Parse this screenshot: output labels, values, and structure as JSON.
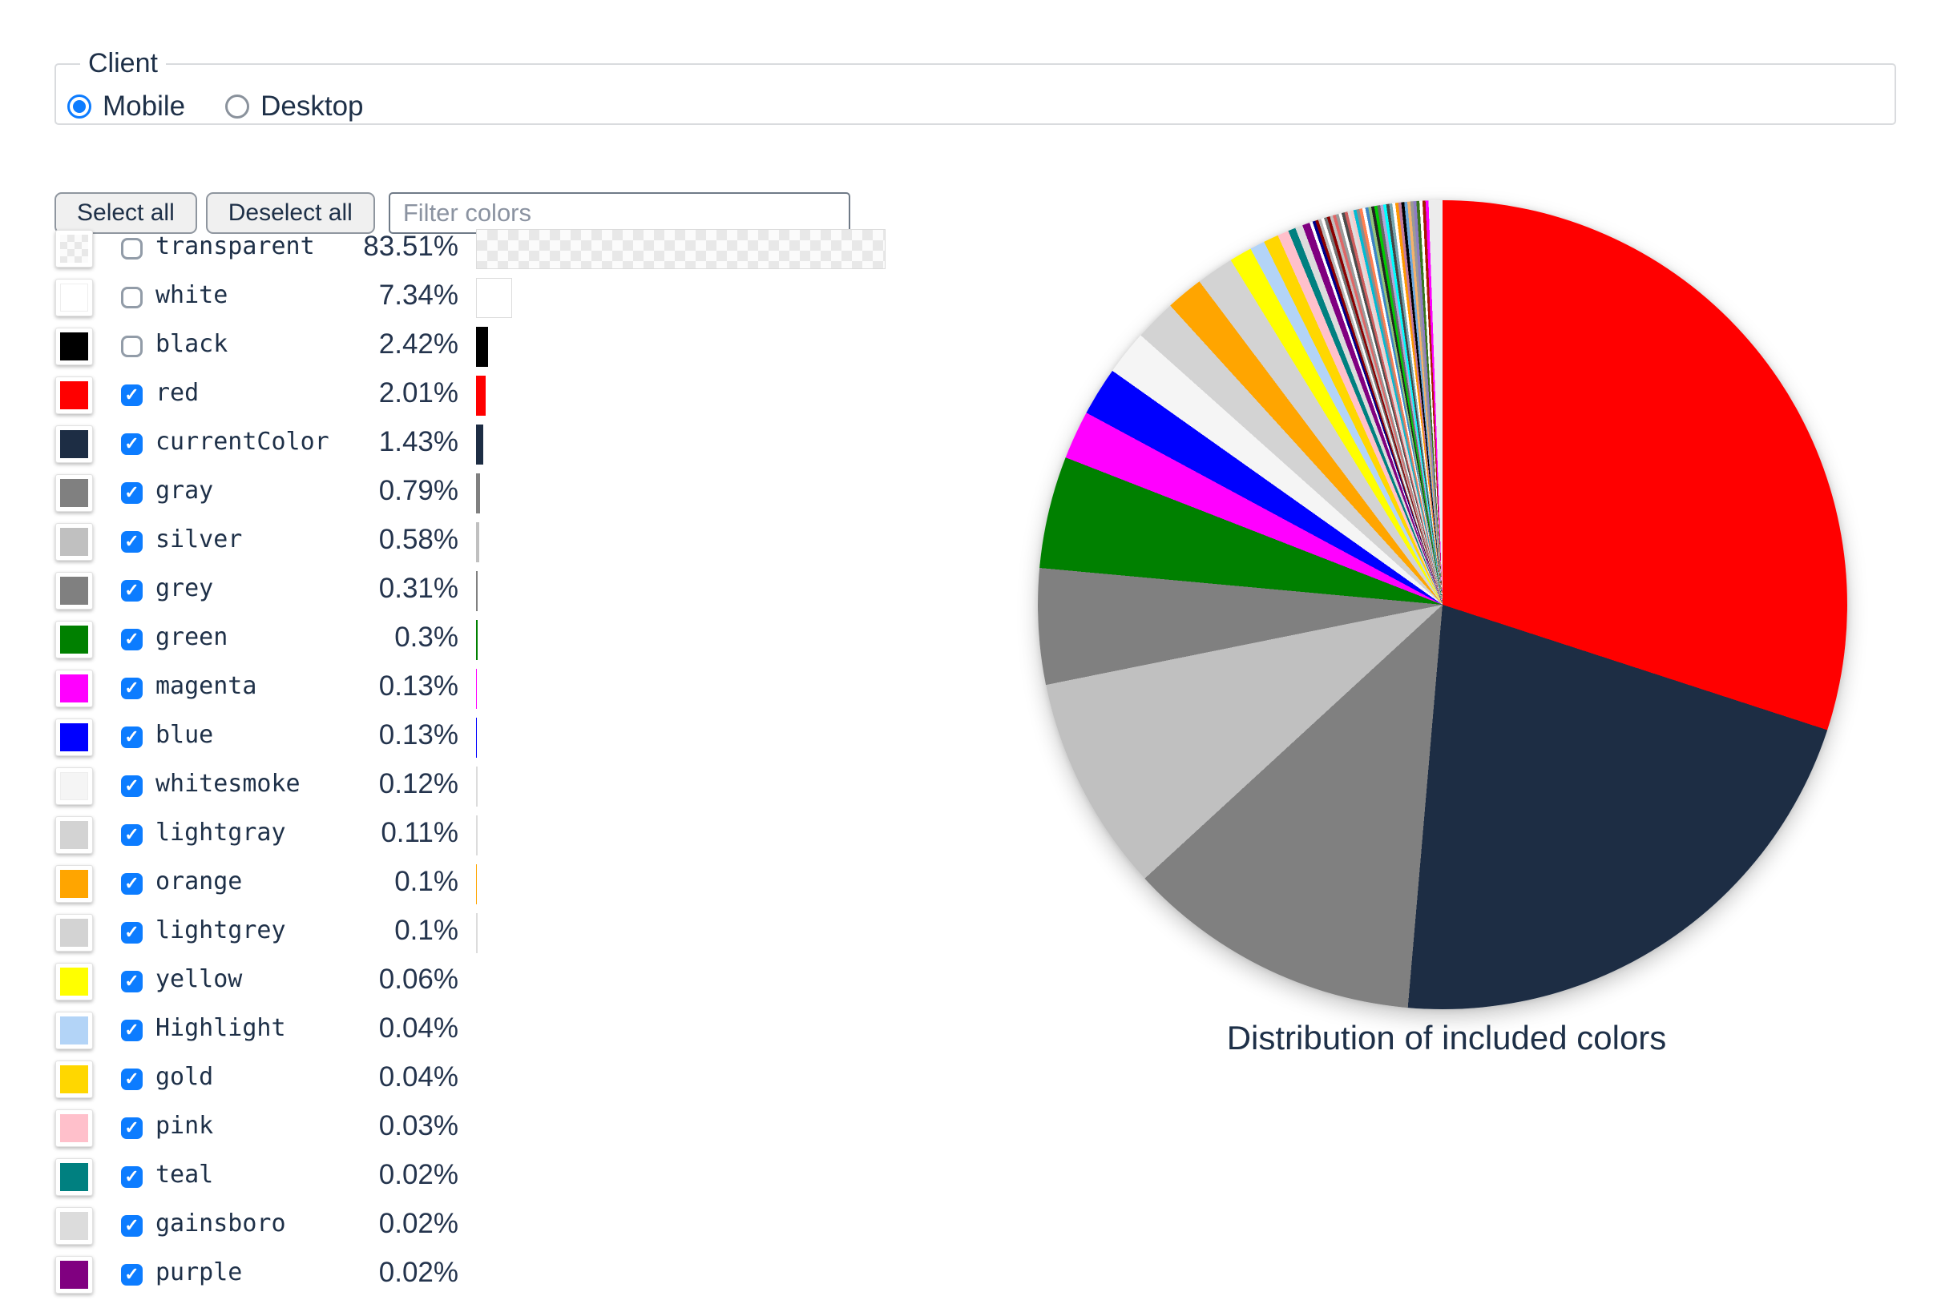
{
  "client_fieldset": {
    "legend": "Client",
    "options": [
      {
        "label": "Mobile",
        "selected": true
      },
      {
        "label": "Desktop",
        "selected": false
      }
    ]
  },
  "toolbar": {
    "select_all_label": "Select all",
    "deselect_all_label": "Deselect all",
    "filter_placeholder": "Filter colors"
  },
  "ui_colors": {
    "accent_blue": "#0c7cff",
    "text_navy": "#1e3048"
  },
  "colors": [
    {
      "name": "transparent",
      "pct": 83.51,
      "pct_label": "83.51%",
      "checked": false,
      "swatch": "checker"
    },
    {
      "name": "white",
      "pct": 7.34,
      "pct_label": "7.34%",
      "checked": false,
      "swatch": "#ffffff"
    },
    {
      "name": "black",
      "pct": 2.42,
      "pct_label": "2.42%",
      "checked": false,
      "swatch": "#000000"
    },
    {
      "name": "red",
      "pct": 2.01,
      "pct_label": "2.01%",
      "checked": true,
      "swatch": "#ff0000"
    },
    {
      "name": "currentColor",
      "pct": 1.43,
      "pct_label": "1.43%",
      "checked": true,
      "swatch": "#1d2d44"
    },
    {
      "name": "gray",
      "pct": 0.79,
      "pct_label": "0.79%",
      "checked": true,
      "swatch": "#808080"
    },
    {
      "name": "silver",
      "pct": 0.58,
      "pct_label": "0.58%",
      "checked": true,
      "swatch": "#c0c0c0"
    },
    {
      "name": "grey",
      "pct": 0.31,
      "pct_label": "0.31%",
      "checked": true,
      "swatch": "#808080"
    },
    {
      "name": "green",
      "pct": 0.3,
      "pct_label": "0.3%",
      "checked": true,
      "swatch": "#008000"
    },
    {
      "name": "magenta",
      "pct": 0.13,
      "pct_label": "0.13%",
      "checked": true,
      "swatch": "#ff00ff"
    },
    {
      "name": "blue",
      "pct": 0.13,
      "pct_label": "0.13%",
      "checked": true,
      "swatch": "#0000ff"
    },
    {
      "name": "whitesmoke",
      "pct": 0.12,
      "pct_label": "0.12%",
      "checked": true,
      "swatch": "#f5f5f5"
    },
    {
      "name": "lightgray",
      "pct": 0.11,
      "pct_label": "0.11%",
      "checked": true,
      "swatch": "#d3d3d3"
    },
    {
      "name": "orange",
      "pct": 0.1,
      "pct_label": "0.1%",
      "checked": true,
      "swatch": "#ffa500"
    },
    {
      "name": "lightgrey",
      "pct": 0.1,
      "pct_label": "0.1%",
      "checked": true,
      "swatch": "#d3d3d3"
    },
    {
      "name": "yellow",
      "pct": 0.06,
      "pct_label": "0.06%",
      "checked": true,
      "swatch": "#ffff00"
    },
    {
      "name": "Highlight",
      "pct": 0.04,
      "pct_label": "0.04%",
      "checked": true,
      "swatch": "#b3d4f7"
    },
    {
      "name": "gold",
      "pct": 0.04,
      "pct_label": "0.04%",
      "checked": true,
      "swatch": "#ffd700"
    },
    {
      "name": "pink",
      "pct": 0.03,
      "pct_label": "0.03%",
      "checked": true,
      "swatch": "#ffc0cb"
    },
    {
      "name": "teal",
      "pct": 0.02,
      "pct_label": "0.02%",
      "checked": true,
      "swatch": "#008080"
    },
    {
      "name": "gainsboro",
      "pct": 0.02,
      "pct_label": "0.02%",
      "checked": true,
      "swatch": "#dcdcdc"
    },
    {
      "name": "purple",
      "pct": 0.02,
      "pct_label": "0.02%",
      "checked": true,
      "swatch": "#800080"
    }
  ],
  "chart_data": {
    "type": "pie",
    "title": "Distribution of included colors",
    "units": "%",
    "note": "Slices are the checked colors, drawn clockwise from 12 o'clock; a long tail of tiny unlabeled color slices fills the last ~20 degrees before returning to top.",
    "slices": [
      {
        "label": "red",
        "value": 2.01,
        "color": "#ff0000"
      },
      {
        "label": "currentColor",
        "value": 1.43,
        "color": "#1d2d44"
      },
      {
        "label": "gray",
        "value": 0.79,
        "color": "#808080"
      },
      {
        "label": "silver",
        "value": 0.58,
        "color": "#c0c0c0"
      },
      {
        "label": "grey",
        "value": 0.31,
        "color": "#808080"
      },
      {
        "label": "green",
        "value": 0.3,
        "color": "#008000"
      },
      {
        "label": "magenta",
        "value": 0.13,
        "color": "#ff00ff"
      },
      {
        "label": "blue",
        "value": 0.13,
        "color": "#0000ff"
      },
      {
        "label": "whitesmoke",
        "value": 0.12,
        "color": "#f5f5f5"
      },
      {
        "label": "lightgray",
        "value": 0.11,
        "color": "#d3d3d3"
      },
      {
        "label": "orange",
        "value": 0.1,
        "color": "#ffa500"
      },
      {
        "label": "lightgrey",
        "value": 0.1,
        "color": "#d3d3d3"
      },
      {
        "label": "yellow",
        "value": 0.06,
        "color": "#ffff00"
      },
      {
        "label": "Highlight",
        "value": 0.04,
        "color": "#b3d4f7"
      },
      {
        "label": "gold",
        "value": 0.04,
        "color": "#ffd700"
      },
      {
        "label": "pink",
        "value": 0.03,
        "color": "#ffc0cb"
      },
      {
        "label": "teal",
        "value": 0.02,
        "color": "#008080"
      },
      {
        "label": "gainsboro",
        "value": 0.02,
        "color": "#dcdcdc"
      },
      {
        "label": "purple",
        "value": 0.02,
        "color": "#800080"
      }
    ],
    "tail_slice_value": 0.008,
    "tail_colors": [
      "#ffffff",
      "#00008b",
      "#8b0000",
      "#b8b8b8",
      "#ffffff",
      "#747474",
      "#8b0000",
      "#c0c0c0",
      "#e06666",
      "#9a9a9a",
      "#ffffff",
      "#4d4d4d",
      "#cd5c5c",
      "#dedede",
      "#f4cccc",
      "#00bcd4",
      "#8c8c8c",
      "#ff7f50",
      "#ffffff",
      "#3d85c6",
      "#93c47d",
      "#222222",
      "#00cc00",
      "#666666",
      "#b4a7d6",
      "#00ffff",
      "#434343",
      "#76a5af",
      "#ffffff",
      "#ff9900",
      "#c27ba0",
      "#000000",
      "#6fa8dc",
      "#f6b26b",
      "#999999",
      "#8e7cc3",
      "#38761d",
      "#ffffff",
      "#a61c00",
      "#ff00ff"
    ],
    "last_slice": {
      "value": 0.037,
      "color": "#ececec"
    }
  }
}
